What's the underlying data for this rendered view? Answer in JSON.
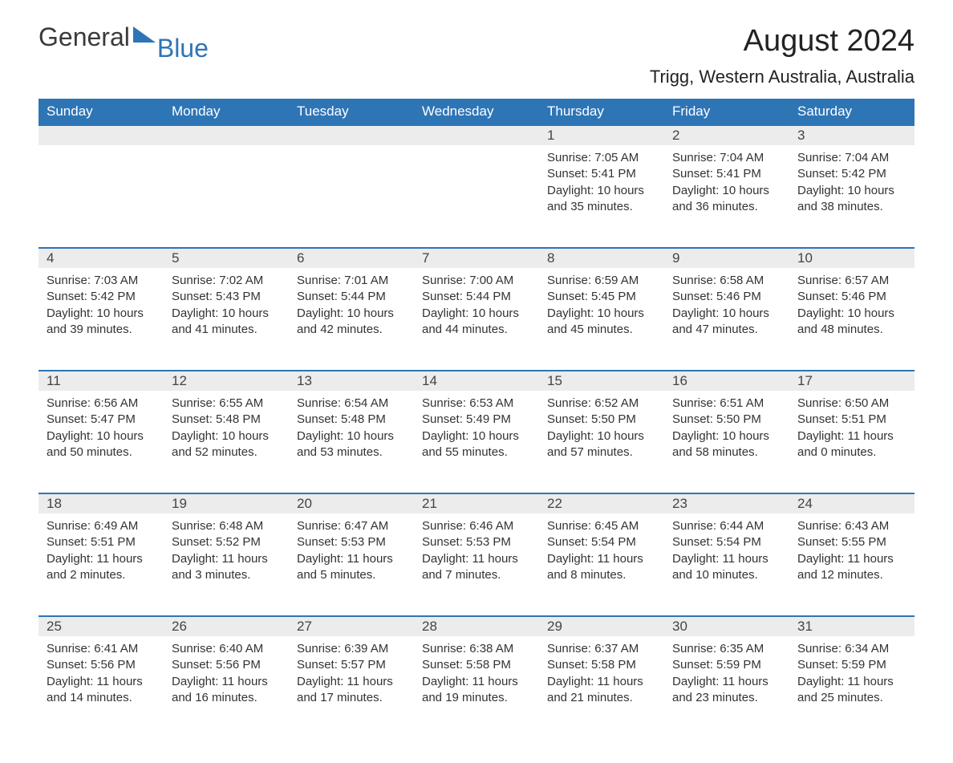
{
  "brand": {
    "part1": "General",
    "part2": "Blue",
    "accent_color": "#2e75b6"
  },
  "title": "August 2024",
  "location": "Trigg, Western Australia, Australia",
  "columns": [
    "Sunday",
    "Monday",
    "Tuesday",
    "Wednesday",
    "Thursday",
    "Friday",
    "Saturday"
  ],
  "colors": {
    "header_bg": "#2e75b6",
    "header_text": "#ffffff",
    "daynum_bg": "#ececec",
    "row_border": "#2e75b6",
    "text": "#333333",
    "background": "#ffffff"
  },
  "typography": {
    "title_fontsize": 38,
    "location_fontsize": 22,
    "header_fontsize": 17,
    "body_fontsize": 15
  },
  "weeks": [
    [
      null,
      null,
      null,
      null,
      {
        "day": "1",
        "sunrise": "7:05 AM",
        "sunset": "5:41 PM",
        "daylight": "10 hours and 35 minutes."
      },
      {
        "day": "2",
        "sunrise": "7:04 AM",
        "sunset": "5:41 PM",
        "daylight": "10 hours and 36 minutes."
      },
      {
        "day": "3",
        "sunrise": "7:04 AM",
        "sunset": "5:42 PM",
        "daylight": "10 hours and 38 minutes."
      }
    ],
    [
      {
        "day": "4",
        "sunrise": "7:03 AM",
        "sunset": "5:42 PM",
        "daylight": "10 hours and 39 minutes."
      },
      {
        "day": "5",
        "sunrise": "7:02 AM",
        "sunset": "5:43 PM",
        "daylight": "10 hours and 41 minutes."
      },
      {
        "day": "6",
        "sunrise": "7:01 AM",
        "sunset": "5:44 PM",
        "daylight": "10 hours and 42 minutes."
      },
      {
        "day": "7",
        "sunrise": "7:00 AM",
        "sunset": "5:44 PM",
        "daylight": "10 hours and 44 minutes."
      },
      {
        "day": "8",
        "sunrise": "6:59 AM",
        "sunset": "5:45 PM",
        "daylight": "10 hours and 45 minutes."
      },
      {
        "day": "9",
        "sunrise": "6:58 AM",
        "sunset": "5:46 PM",
        "daylight": "10 hours and 47 minutes."
      },
      {
        "day": "10",
        "sunrise": "6:57 AM",
        "sunset": "5:46 PM",
        "daylight": "10 hours and 48 minutes."
      }
    ],
    [
      {
        "day": "11",
        "sunrise": "6:56 AM",
        "sunset": "5:47 PM",
        "daylight": "10 hours and 50 minutes."
      },
      {
        "day": "12",
        "sunrise": "6:55 AM",
        "sunset": "5:48 PM",
        "daylight": "10 hours and 52 minutes."
      },
      {
        "day": "13",
        "sunrise": "6:54 AM",
        "sunset": "5:48 PM",
        "daylight": "10 hours and 53 minutes."
      },
      {
        "day": "14",
        "sunrise": "6:53 AM",
        "sunset": "5:49 PM",
        "daylight": "10 hours and 55 minutes."
      },
      {
        "day": "15",
        "sunrise": "6:52 AM",
        "sunset": "5:50 PM",
        "daylight": "10 hours and 57 minutes."
      },
      {
        "day": "16",
        "sunrise": "6:51 AM",
        "sunset": "5:50 PM",
        "daylight": "10 hours and 58 minutes."
      },
      {
        "day": "17",
        "sunrise": "6:50 AM",
        "sunset": "5:51 PM",
        "daylight": "11 hours and 0 minutes."
      }
    ],
    [
      {
        "day": "18",
        "sunrise": "6:49 AM",
        "sunset": "5:51 PM",
        "daylight": "11 hours and 2 minutes."
      },
      {
        "day": "19",
        "sunrise": "6:48 AM",
        "sunset": "5:52 PM",
        "daylight": "11 hours and 3 minutes."
      },
      {
        "day": "20",
        "sunrise": "6:47 AM",
        "sunset": "5:53 PM",
        "daylight": "11 hours and 5 minutes."
      },
      {
        "day": "21",
        "sunrise": "6:46 AM",
        "sunset": "5:53 PM",
        "daylight": "11 hours and 7 minutes."
      },
      {
        "day": "22",
        "sunrise": "6:45 AM",
        "sunset": "5:54 PM",
        "daylight": "11 hours and 8 minutes."
      },
      {
        "day": "23",
        "sunrise": "6:44 AM",
        "sunset": "5:54 PM",
        "daylight": "11 hours and 10 minutes."
      },
      {
        "day": "24",
        "sunrise": "6:43 AM",
        "sunset": "5:55 PM",
        "daylight": "11 hours and 12 minutes."
      }
    ],
    [
      {
        "day": "25",
        "sunrise": "6:41 AM",
        "sunset": "5:56 PM",
        "daylight": "11 hours and 14 minutes."
      },
      {
        "day": "26",
        "sunrise": "6:40 AM",
        "sunset": "5:56 PM",
        "daylight": "11 hours and 16 minutes."
      },
      {
        "day": "27",
        "sunrise": "6:39 AM",
        "sunset": "5:57 PM",
        "daylight": "11 hours and 17 minutes."
      },
      {
        "day": "28",
        "sunrise": "6:38 AM",
        "sunset": "5:58 PM",
        "daylight": "11 hours and 19 minutes."
      },
      {
        "day": "29",
        "sunrise": "6:37 AM",
        "sunset": "5:58 PM",
        "daylight": "11 hours and 21 minutes."
      },
      {
        "day": "30",
        "sunrise": "6:35 AM",
        "sunset": "5:59 PM",
        "daylight": "11 hours and 23 minutes."
      },
      {
        "day": "31",
        "sunrise": "6:34 AM",
        "sunset": "5:59 PM",
        "daylight": "11 hours and 25 minutes."
      }
    ]
  ]
}
